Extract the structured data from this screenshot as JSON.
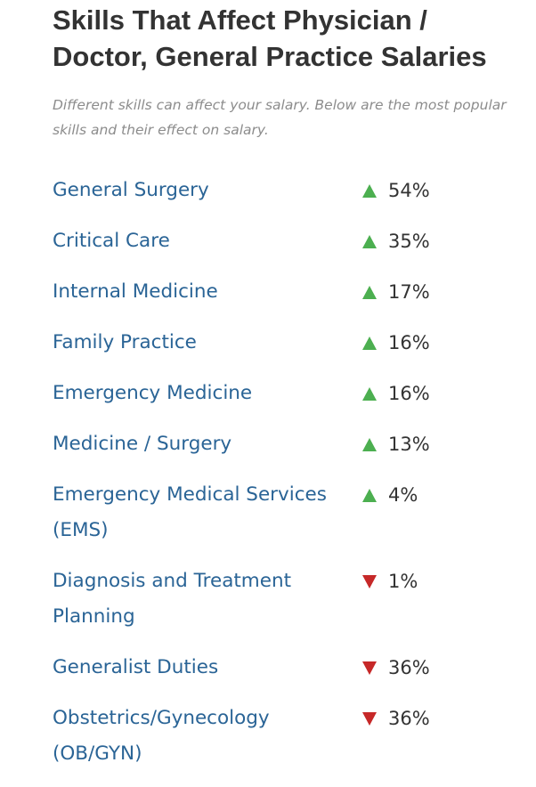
{
  "heading": {
    "title": "Skills That Affect Physician / Doctor, General Practice Salaries",
    "subtitle": "Different skills can affect your salary. Below are the most popular skills and their effect on salary."
  },
  "colors": {
    "link": "#2a6496",
    "positive": "#4caf50",
    "negative": "#c62828"
  },
  "skills": [
    {
      "name": "General Surgery",
      "direction": "up",
      "icon": "triangle-up-icon",
      "effect": "54%"
    },
    {
      "name": "Critical Care",
      "direction": "up",
      "icon": "triangle-up-icon",
      "effect": "35%"
    },
    {
      "name": "Internal Medicine",
      "direction": "up",
      "icon": "triangle-up-icon",
      "effect": "17%"
    },
    {
      "name": "Family Practice",
      "direction": "up",
      "icon": "triangle-up-icon",
      "effect": "16%"
    },
    {
      "name": "Emergency Medicine",
      "direction": "up",
      "icon": "triangle-up-icon",
      "effect": "16%"
    },
    {
      "name": "Medicine / Surgery",
      "direction": "up",
      "icon": "triangle-up-icon",
      "effect": "13%"
    },
    {
      "name": "Emergency Medical Services (EMS)",
      "direction": "up",
      "icon": "triangle-up-icon",
      "effect": "4%"
    },
    {
      "name": "Diagnosis and Treatment Planning",
      "direction": "down",
      "icon": "triangle-down-icon",
      "effect": "1%"
    },
    {
      "name": "Generalist Duties",
      "direction": "down",
      "icon": "triangle-down-icon",
      "effect": "36%"
    },
    {
      "name": "Obstetrics/Gynecology (OB/GYN)",
      "direction": "down",
      "icon": "triangle-down-icon",
      "effect": "36%"
    }
  ]
}
